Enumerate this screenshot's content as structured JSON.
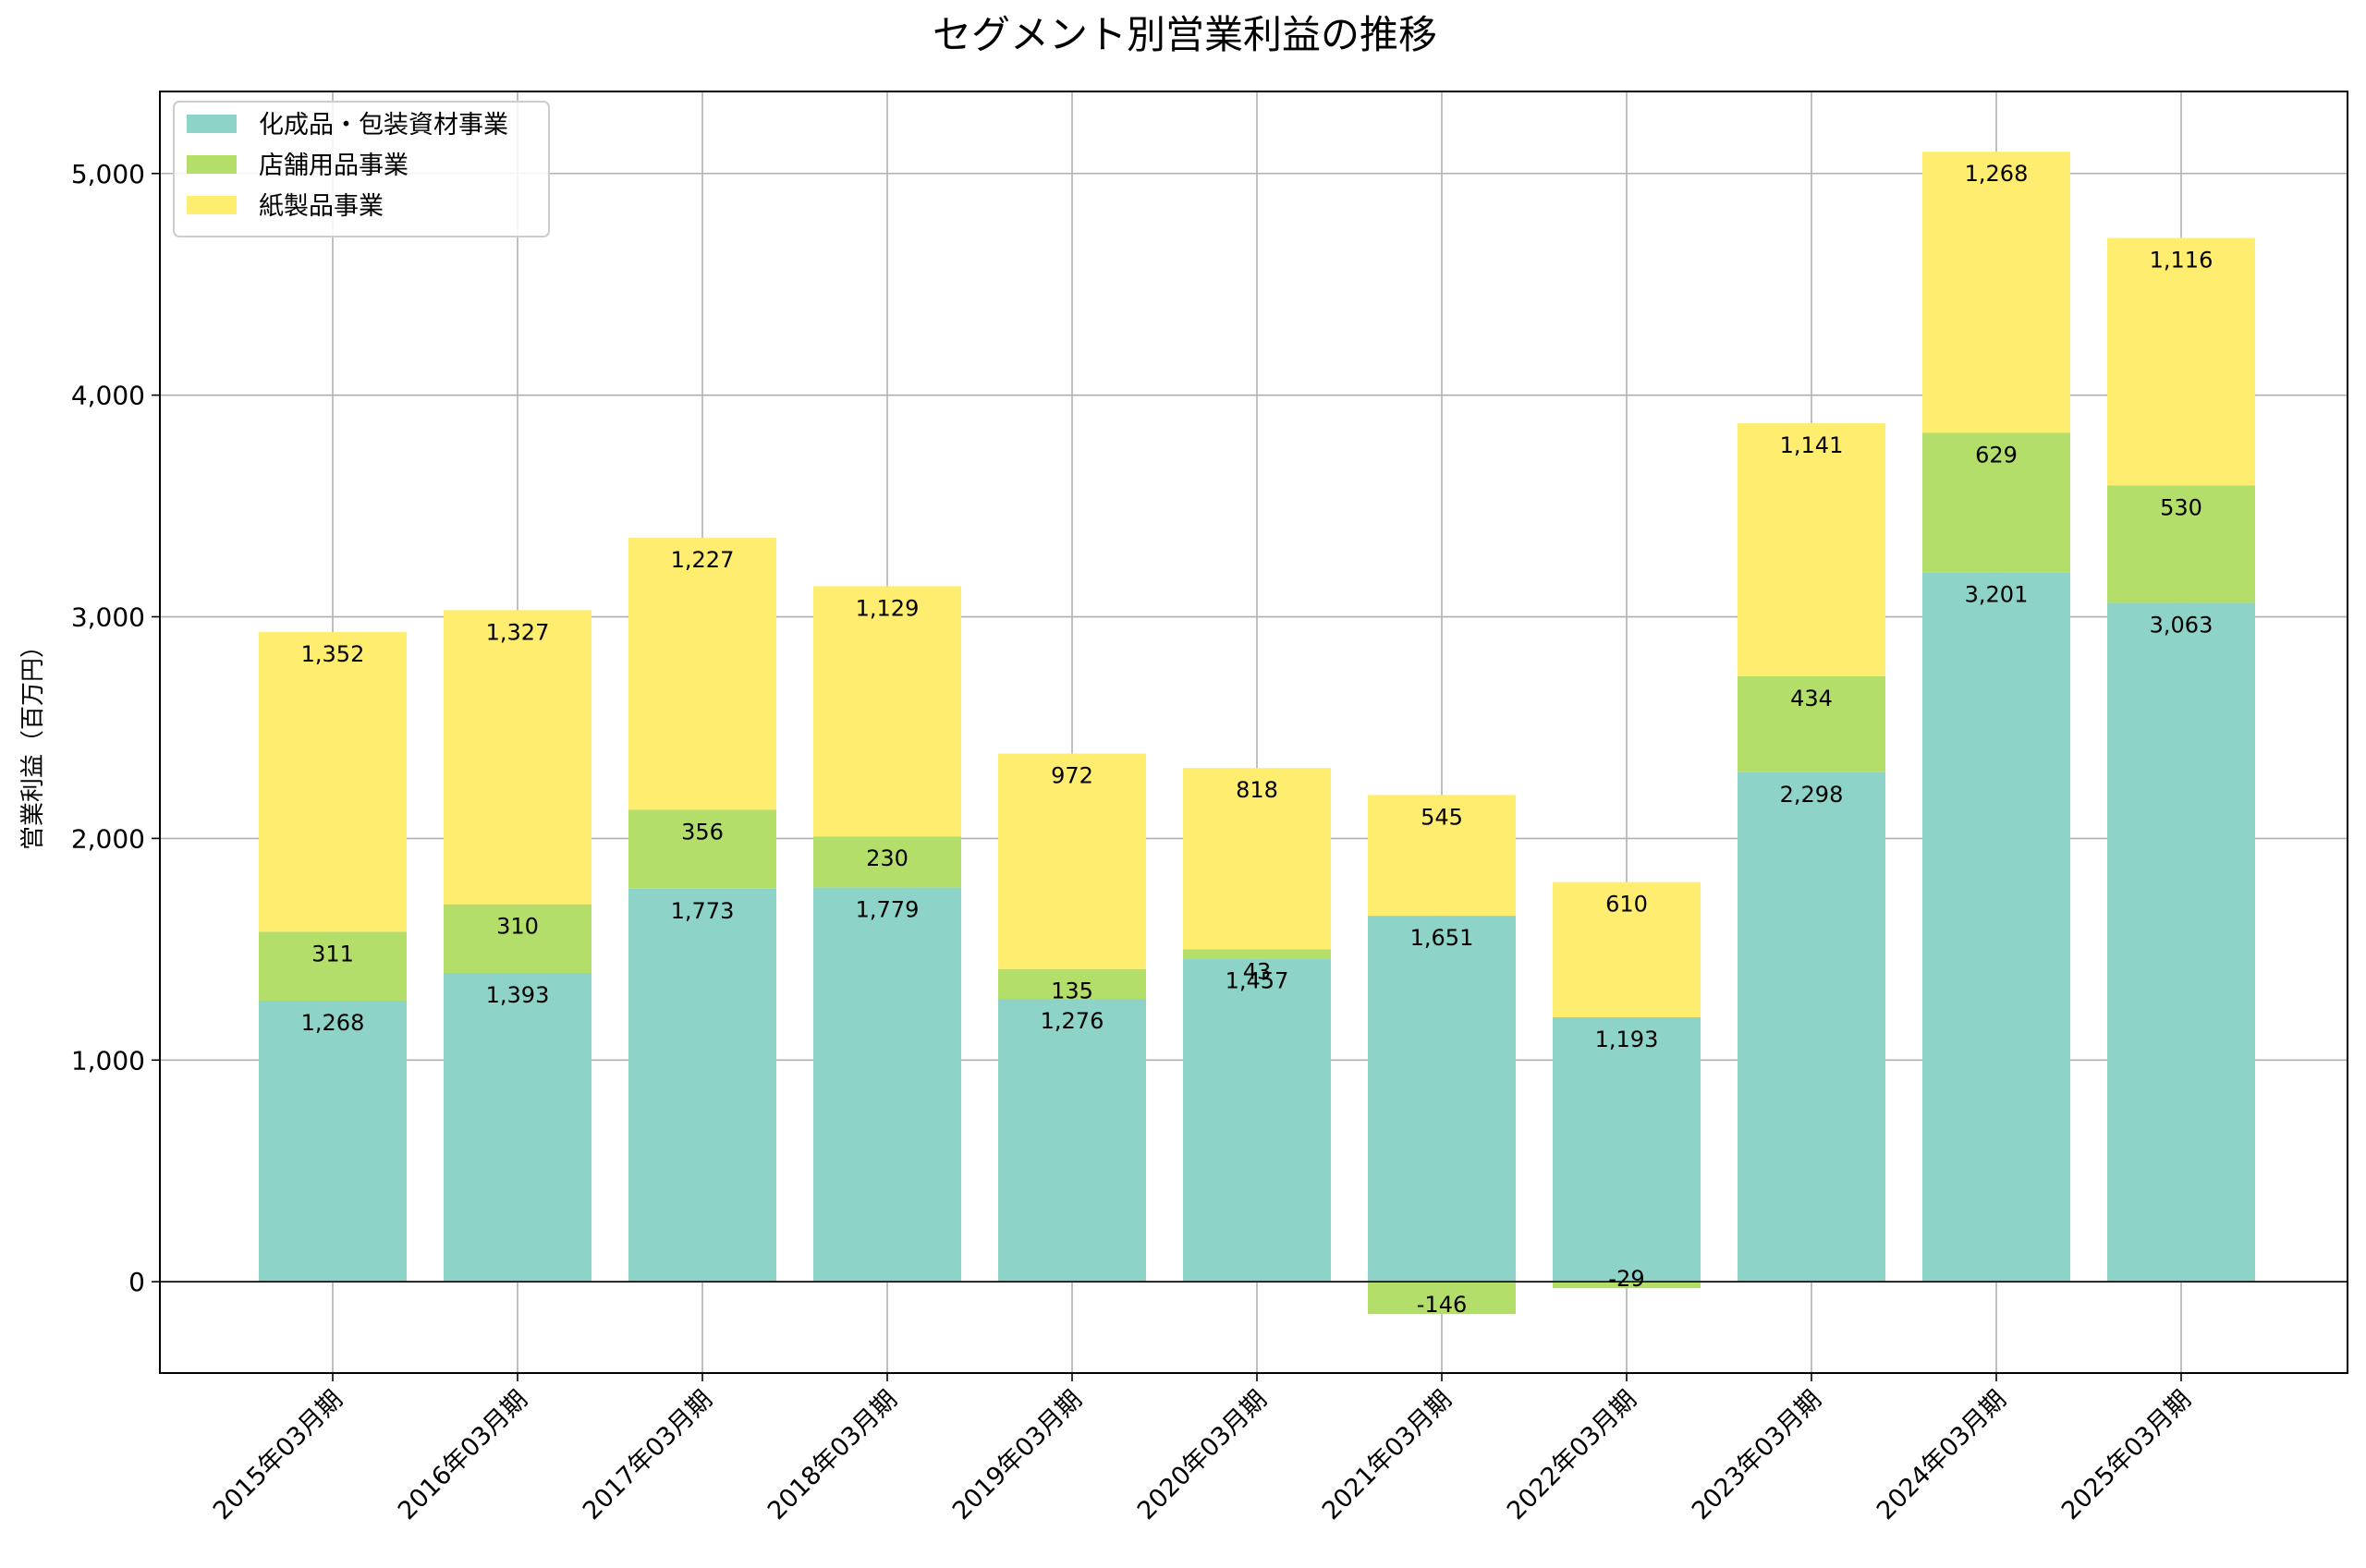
{
  "chart_data": {
    "type": "bar",
    "stacked": true,
    "title": "セグメント別営業利益の推移",
    "xlabel": "",
    "ylabel": "営業利益（百万円）",
    "categories": [
      "2015年03月期",
      "2016年03月期",
      "2017年03月期",
      "2018年03月期",
      "2019年03月期",
      "2020年03月期",
      "2021年03月期",
      "2022年03月期",
      "2023年03月期",
      "2024年03月期",
      "2025年03月期"
    ],
    "series": [
      {
        "name": "化成品・包装資材事業",
        "color": "#8dd3c7",
        "values": [
          1268,
          1393,
          1773,
          1779,
          1276,
          1457,
          1651,
          1193,
          2298,
          3201,
          3063
        ]
      },
      {
        "name": "店舗用品事業",
        "color": "#b3de69",
        "values": [
          311,
          310,
          356,
          230,
          135,
          43,
          -146,
          -29,
          434,
          629,
          530
        ]
      },
      {
        "name": "紙製品事業",
        "color": "#ffed6f",
        "values": [
          1352,
          1327,
          1227,
          1129,
          972,
          818,
          545,
          610,
          1141,
          1268,
          1116
        ]
      }
    ],
    "data_labels": [
      [
        "1,268",
        "1,393",
        "1,773",
        "1,779",
        "1,276",
        "1,457",
        "1,651",
        "1,193",
        "2,298",
        "3,201",
        "3,063"
      ],
      [
        "311",
        "310",
        "356",
        "230",
        "135",
        "43",
        "-146",
        "-29",
        "434",
        "629",
        "530"
      ],
      [
        "1,352",
        "1,327",
        "1,227",
        "1,129",
        "972",
        "818",
        "545",
        "610",
        "1,141",
        "1,268",
        "1,116"
      ]
    ],
    "yticks": [
      0,
      1000,
      2000,
      3000,
      4000,
      5000
    ],
    "ytick_labels": [
      "0",
      "1,000",
      "2,000",
      "3,000",
      "4,000",
      "5,000"
    ],
    "ylim": [
      -412,
      5370
    ],
    "grid": true,
    "legend": "top-left"
  }
}
